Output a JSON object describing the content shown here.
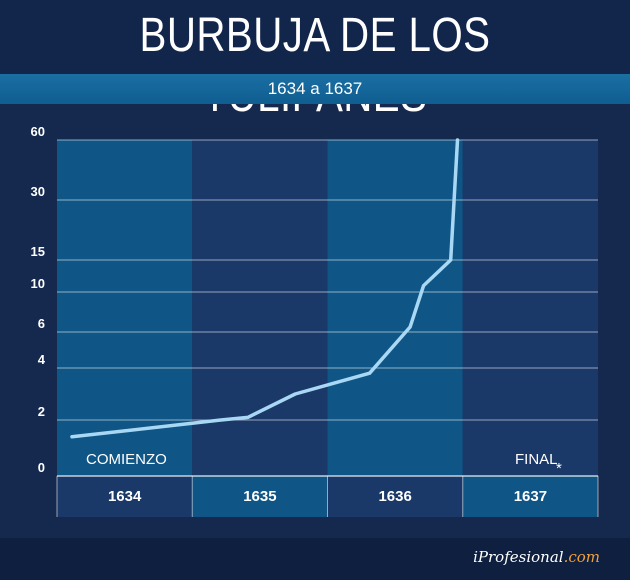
{
  "header": {
    "title": "BURBUJA DE LOS TULIPANES",
    "subtitle": "1634 a 1637"
  },
  "footer": {
    "brand_prefix": "i",
    "brand_main": "Profesional",
    "brand_suffix": ".com"
  },
  "colors": {
    "background": "#15294f",
    "band_light": "#0f5586",
    "band_dark": "#1a3868",
    "line": "#a9d8f5",
    "accent": "#f2a23a"
  },
  "chart_data": {
    "type": "line",
    "title": "BURBUJA DE LOS TULIPANES",
    "subtitle": "1634 a 1637",
    "xlabel": "",
    "ylabel": "",
    "categories": [
      "1634",
      "1635",
      "1636",
      "1637"
    ],
    "y_ticks": [
      "0",
      "2",
      "4",
      "6",
      "10",
      "15",
      "30",
      "60"
    ],
    "y_scale": "non-linear (tick spacing as shown)",
    "grid": true,
    "annotations": {
      "start": "COMIENZO",
      "end": "FINAL",
      "end_mark": "*"
    },
    "series": [
      {
        "points": [
          {
            "x": 1634.0,
            "y": 1.4
          },
          {
            "x": 1635.1,
            "y": 2.0
          },
          {
            "x": 1635.3,
            "y": 2.1
          },
          {
            "x": 1635.65,
            "y": 3.0
          },
          {
            "x": 1636.2,
            "y": 3.8
          },
          {
            "x": 1636.5,
            "y": 6.5
          },
          {
            "x": 1636.6,
            "y": 11
          },
          {
            "x": 1636.8,
            "y": 15
          },
          {
            "x": 1636.85,
            "y": 60
          }
        ]
      }
    ]
  }
}
